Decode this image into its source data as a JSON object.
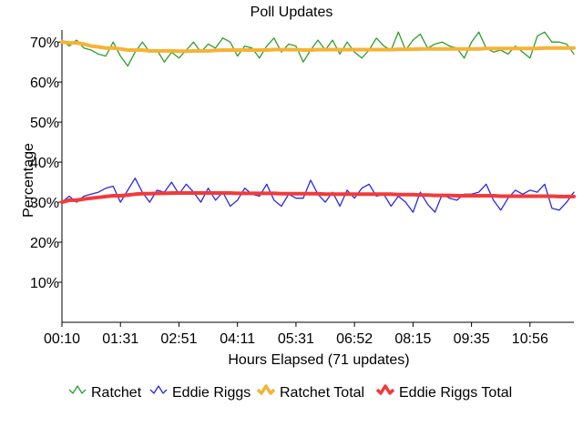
{
  "chart_data": {
    "type": "line",
    "title": "Poll Updates",
    "xlabel": "Hours Elapsed (71 updates)",
    "ylabel": "Percentage",
    "x_tick_labels": [
      "00:10",
      "01:31",
      "02:51",
      "04:11",
      "05:31",
      "06:52",
      "08:15",
      "09:35",
      "10:56"
    ],
    "y_tick_labels": [
      "10%",
      "20%",
      "30%",
      "40%",
      "50%",
      "60%",
      "70%"
    ],
    "y_ticks": [
      10,
      20,
      30,
      40,
      50,
      60,
      70
    ],
    "ylim": [
      0,
      73
    ],
    "x_index_range": [
      0,
      70
    ],
    "x_tick_indices": [
      0,
      8,
      16,
      24,
      32,
      40,
      48,
      56,
      64
    ],
    "grid": false,
    "legend_position": "bottom",
    "series": [
      {
        "name": "Ratchet",
        "color": "#2e9e2e",
        "style": "thin",
        "values": [
          70.5,
          69.0,
          70.5,
          68.5,
          68.0,
          67.0,
          66.5,
          70.0,
          66.5,
          64.0,
          67.5,
          70.0,
          67.5,
          68.0,
          65.0,
          67.5,
          66.0,
          68.0,
          70.0,
          67.5,
          69.5,
          68.5,
          71.0,
          70.0,
          66.5,
          69.0,
          68.5,
          66.0,
          69.0,
          71.0,
          67.5,
          69.5,
          69.0,
          65.0,
          68.0,
          70.5,
          68.0,
          70.5,
          67.0,
          70.0,
          67.5,
          66.0,
          68.0,
          71.0,
          69.0,
          68.0,
          72.5,
          68.0,
          70.5,
          72.0,
          68.5,
          69.5,
          70.0,
          69.0,
          68.5,
          66.0,
          70.0,
          72.5,
          68.5,
          67.5,
          68.0,
          67.0,
          69.0,
          67.5,
          66.0,
          71.5,
          72.5,
          70.0,
          70.0,
          69.5,
          67.0
        ]
      },
      {
        "name": "Eddie Riggs",
        "color": "#2a2ae0",
        "style": "thin",
        "values": [
          30.0,
          31.5,
          30.0,
          31.5,
          32.0,
          32.5,
          33.5,
          34.0,
          30.0,
          33.0,
          36.0,
          32.5,
          30.0,
          33.0,
          32.5,
          35.0,
          32.0,
          34.5,
          32.5,
          30.0,
          33.5,
          30.5,
          32.5,
          29.0,
          30.5,
          33.5,
          32.0,
          31.5,
          34.5,
          30.5,
          29.0,
          32.0,
          31.0,
          31.0,
          35.5,
          32.0,
          30.0,
          32.5,
          29.0,
          33.0,
          31.0,
          33.5,
          34.5,
          31.5,
          32.0,
          29.0,
          31.5,
          30.0,
          27.5,
          32.5,
          29.5,
          27.5,
          32.0,
          31.0,
          30.5,
          32.0,
          32.0,
          32.5,
          34.5,
          30.5,
          28.0,
          31.0,
          33.0,
          32.0,
          33.0,
          32.5,
          34.5,
          28.5,
          28.0,
          30.0,
          32.5
        ]
      },
      {
        "name": "Ratchet Total",
        "color": "#f5b335",
        "style": "thick",
        "values": [
          70.0,
          69.8,
          69.8,
          69.5,
          69.0,
          68.8,
          68.5,
          68.5,
          68.3,
          68.0,
          68.0,
          68.0,
          67.8,
          67.8,
          67.8,
          67.8,
          67.7,
          67.7,
          67.8,
          67.8,
          67.8,
          67.9,
          68.0,
          68.0,
          68.0,
          68.0,
          68.0,
          68.0,
          68.0,
          68.1,
          68.1,
          68.1,
          68.1,
          68.0,
          68.0,
          68.1,
          68.1,
          68.1,
          68.1,
          68.1,
          68.1,
          68.1,
          68.1,
          68.1,
          68.1,
          68.1,
          68.2,
          68.2,
          68.2,
          68.3,
          68.3,
          68.3,
          68.3,
          68.3,
          68.3,
          68.3,
          68.3,
          68.3,
          68.4,
          68.4,
          68.4,
          68.4,
          68.4,
          68.4,
          68.4,
          68.4,
          68.5,
          68.5,
          68.5,
          68.5,
          68.5
        ]
      },
      {
        "name": "Eddie Riggs Total",
        "color": "#f23a3a",
        "style": "thick",
        "values": [
          30.0,
          30.5,
          30.5,
          30.8,
          31.0,
          31.2,
          31.4,
          31.6,
          31.6,
          31.8,
          32.0,
          32.1,
          32.1,
          32.2,
          32.2,
          32.3,
          32.3,
          32.3,
          32.3,
          32.3,
          32.3,
          32.3,
          32.3,
          32.3,
          32.2,
          32.2,
          32.2,
          32.2,
          32.2,
          32.2,
          32.1,
          32.1,
          32.1,
          32.1,
          32.1,
          32.1,
          32.0,
          32.0,
          32.0,
          32.0,
          32.0,
          32.0,
          32.0,
          32.0,
          32.0,
          32.0,
          31.9,
          31.9,
          31.9,
          31.8,
          31.8,
          31.7,
          31.7,
          31.7,
          31.6,
          31.6,
          31.6,
          31.6,
          31.6,
          31.6,
          31.5,
          31.5,
          31.5,
          31.5,
          31.5,
          31.5,
          31.5,
          31.5,
          31.4,
          31.4,
          31.4
        ]
      }
    ]
  }
}
